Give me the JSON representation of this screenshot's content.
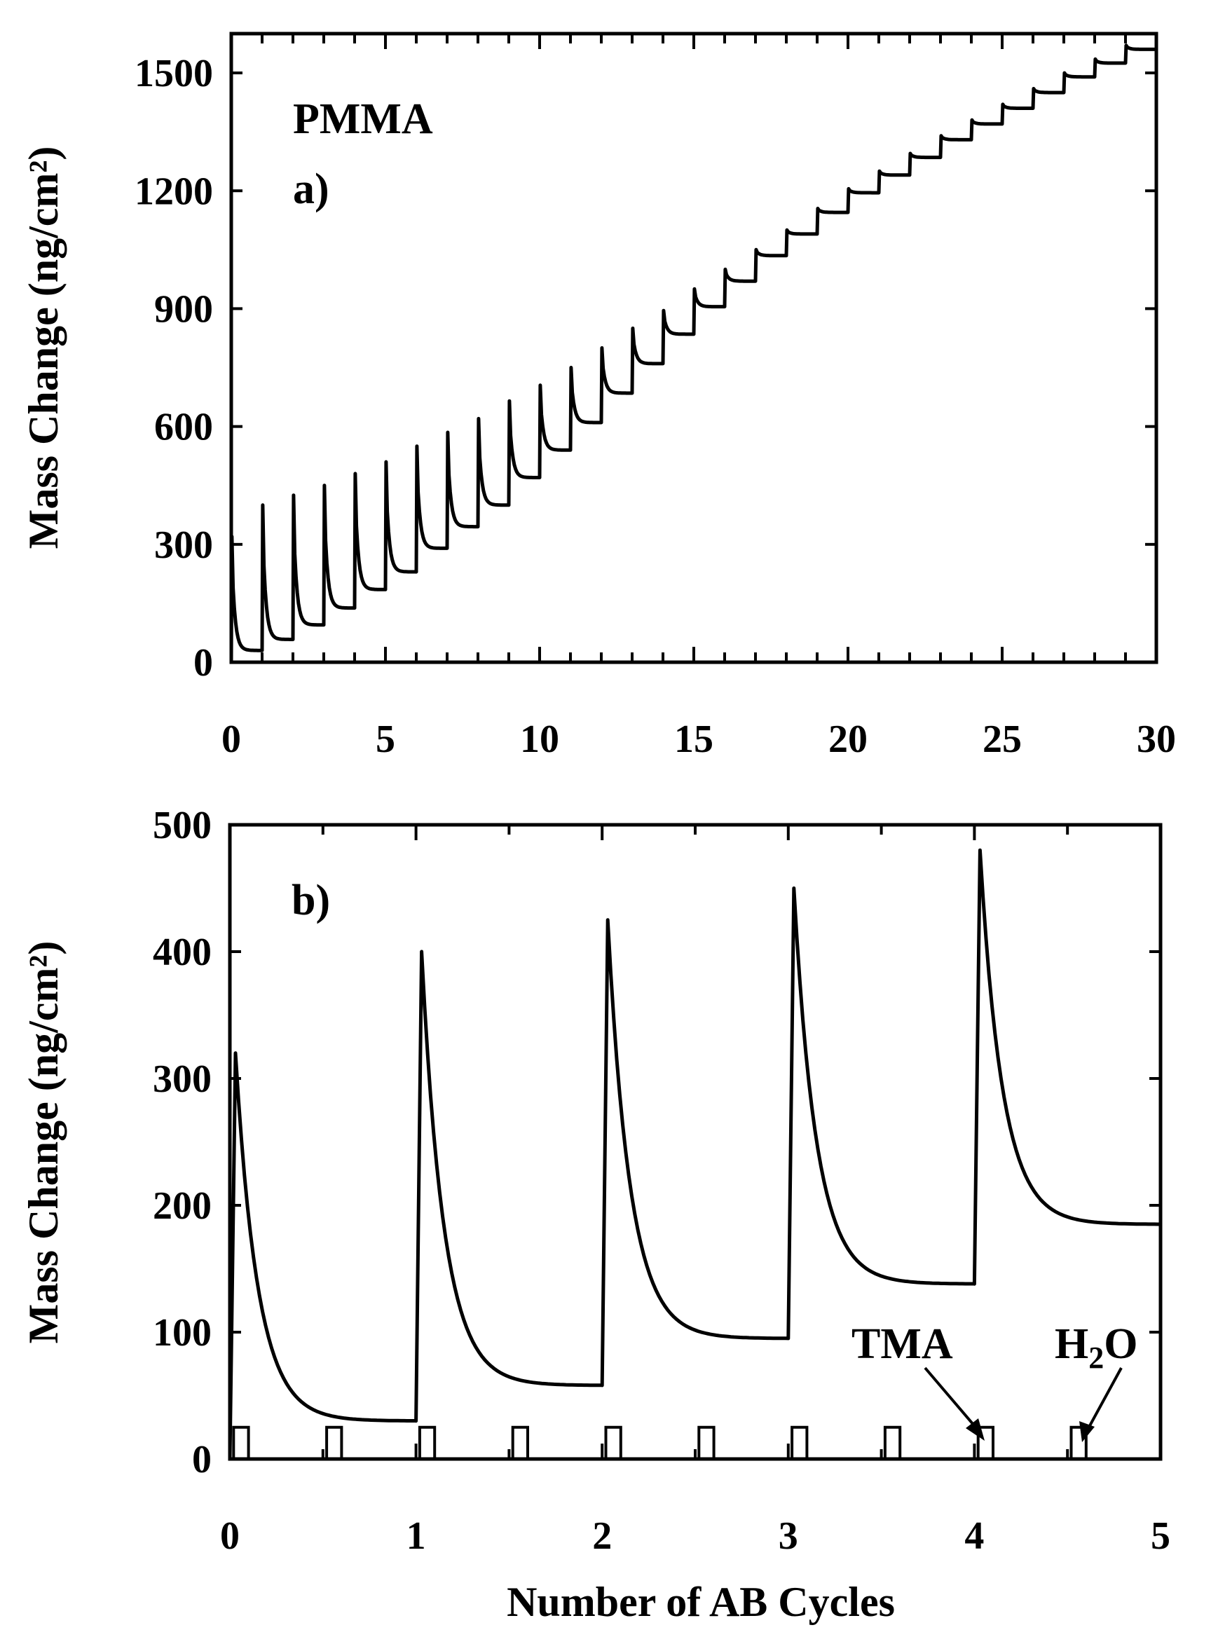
{
  "chart_data": [
    {
      "panel": "a",
      "type": "line",
      "annotation_title": "PMMA",
      "panel_label": "a)",
      "ylabel": "Mass Change (ng/cm²)",
      "xlim": [
        0,
        30
      ],
      "ylim": [
        0,
        1600
      ],
      "x_ticks": [
        0,
        5,
        10,
        15,
        20,
        25,
        30
      ],
      "x_tick_labels": [
        "0",
        "5",
        "10",
        "15",
        "20",
        "25",
        "30"
      ],
      "y_ticks": [
        0,
        300,
        600,
        900,
        1200,
        1500
      ],
      "y_tick_labels": [
        "0",
        "300",
        "600",
        "900",
        "1200",
        "1500"
      ],
      "cycles": [
        {
          "start": 0,
          "peak": 320,
          "base": 30
        },
        {
          "start": 1,
          "peak": 400,
          "base": 58
        },
        {
          "start": 2,
          "peak": 425,
          "base": 95
        },
        {
          "start": 3,
          "peak": 450,
          "base": 138
        },
        {
          "start": 4,
          "peak": 480,
          "base": 185
        },
        {
          "start": 5,
          "peak": 510,
          "base": 230
        },
        {
          "start": 6,
          "peak": 550,
          "base": 290
        },
        {
          "start": 7,
          "peak": 585,
          "base": 345
        },
        {
          "start": 8,
          "peak": 620,
          "base": 400
        },
        {
          "start": 9,
          "peak": 665,
          "base": 470
        },
        {
          "start": 10,
          "peak": 705,
          "base": 540
        },
        {
          "start": 11,
          "peak": 750,
          "base": 610
        },
        {
          "start": 12,
          "peak": 800,
          "base": 685
        },
        {
          "start": 13,
          "peak": 850,
          "base": 760
        },
        {
          "start": 14,
          "peak": 895,
          "base": 835
        },
        {
          "start": 15,
          "peak": 950,
          "base": 905
        },
        {
          "start": 16,
          "peak": 1000,
          "base": 970
        },
        {
          "start": 17,
          "peak": 1050,
          "base": 1035
        },
        {
          "start": 18,
          "peak": 1100,
          "base": 1090
        },
        {
          "start": 19,
          "peak": 1155,
          "base": 1145
        },
        {
          "start": 20,
          "peak": 1205,
          "base": 1195
        },
        {
          "start": 21,
          "peak": 1250,
          "base": 1240
        },
        {
          "start": 22,
          "peak": 1295,
          "base": 1285
        },
        {
          "start": 23,
          "peak": 1340,
          "base": 1330
        },
        {
          "start": 24,
          "peak": 1380,
          "base": 1370
        },
        {
          "start": 25,
          "peak": 1420,
          "base": 1410
        },
        {
          "start": 26,
          "peak": 1460,
          "base": 1450
        },
        {
          "start": 27,
          "peak": 1500,
          "base": 1490
        },
        {
          "start": 28,
          "peak": 1535,
          "base": 1525
        },
        {
          "start": 29,
          "peak": 1570,
          "base": 1560
        }
      ]
    },
    {
      "panel": "b",
      "type": "line",
      "panel_label": "b)",
      "xlabel": "Number of AB Cycles",
      "ylabel": "Mass Change (ng/cm²)",
      "xlim": [
        0,
        5
      ],
      "ylim": [
        0,
        500
      ],
      "x_ticks": [
        0,
        1,
        2,
        3,
        4,
        5
      ],
      "x_tick_labels": [
        "0",
        "1",
        "2",
        "3",
        "4",
        "5"
      ],
      "y_ticks": [
        0,
        100,
        200,
        300,
        400,
        500
      ],
      "y_tick_labels": [
        "0",
        "100",
        "200",
        "300",
        "400",
        "500"
      ],
      "cycles": [
        {
          "start": 0,
          "pre": 0,
          "peak": 320,
          "base": 30
        },
        {
          "start": 1,
          "pre": 30,
          "peak": 400,
          "base": 58
        },
        {
          "start": 2,
          "pre": 58,
          "peak": 425,
          "base": 95
        },
        {
          "start": 3,
          "pre": 95,
          "peak": 450,
          "base": 138
        },
        {
          "start": 4,
          "pre": 138,
          "peak": 480,
          "base": 185
        }
      ],
      "pulses": [
        {
          "x": 0.0,
          "kind": "TMA"
        },
        {
          "x": 0.5,
          "kind": "H2O"
        },
        {
          "x": 1.0,
          "kind": "TMA"
        },
        {
          "x": 1.5,
          "kind": "H2O"
        },
        {
          "x": 2.0,
          "kind": "TMA"
        },
        {
          "x": 2.5,
          "kind": "H2O"
        },
        {
          "x": 3.0,
          "kind": "TMA"
        },
        {
          "x": 3.5,
          "kind": "H2O"
        },
        {
          "x": 4.0,
          "kind": "TMA"
        },
        {
          "x": 4.5,
          "kind": "H2O"
        }
      ],
      "pulse_height": 25,
      "annotations": {
        "tma_label": "TMA",
        "h2o_label_main": "H",
        "h2o_label_sub": "2",
        "h2o_label_tail": "O"
      }
    }
  ]
}
